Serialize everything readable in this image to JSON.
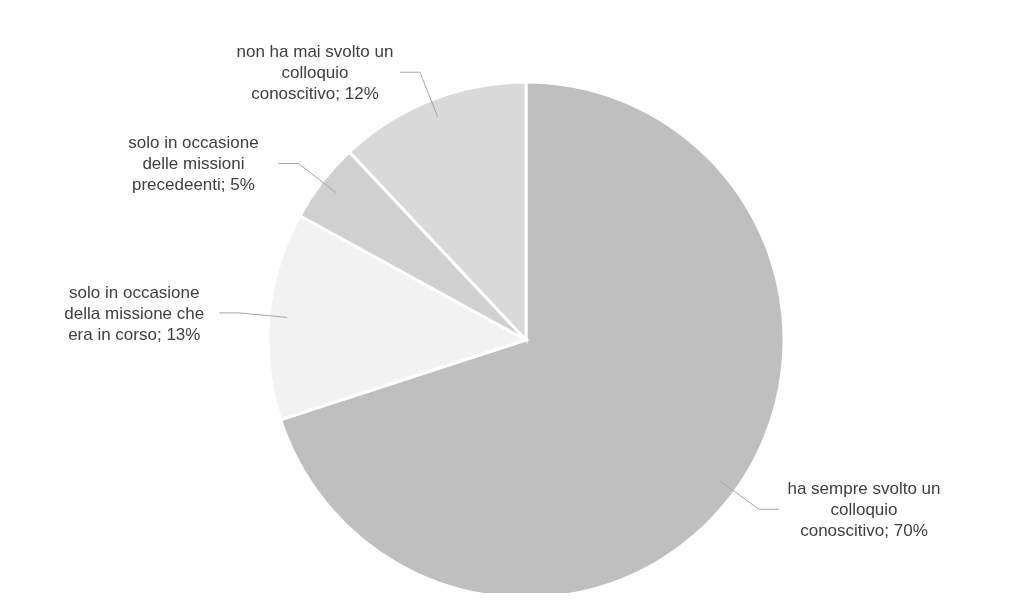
{
  "chart_data": {
    "type": "pie",
    "categories": [
      "ha sempre svolto un colloquio conoscitivo",
      "solo in occasione della missione che era in corso",
      "solo in occasione delle missioni precedeenti",
      "non ha mai svolto un colloquio conoscitivo"
    ],
    "values": [
      70,
      13,
      5,
      12
    ],
    "value_labels": [
      "70%",
      "13%",
      "5%",
      "12%"
    ],
    "colors": [
      "#bfbfbf",
      "#f2f2f2",
      "#d0d0d0",
      "#d9d9d9"
    ],
    "legend": false
  }
}
